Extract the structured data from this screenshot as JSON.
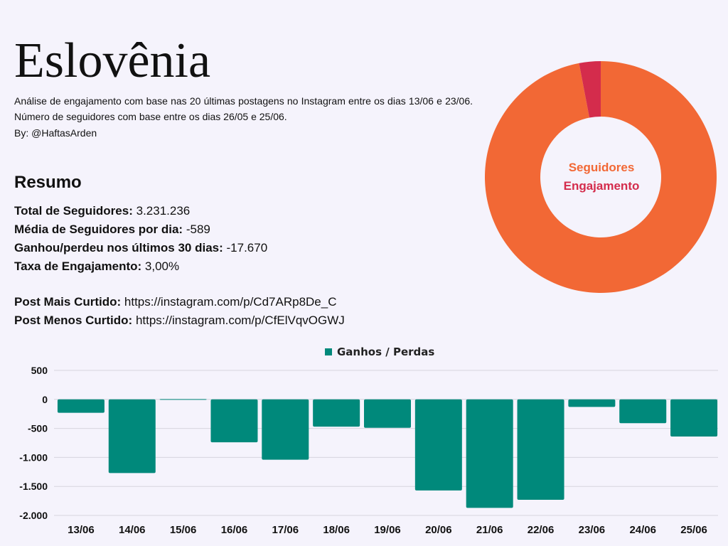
{
  "header": {
    "title": "Eslovênia",
    "subtitle": "Análise de engajamento com base nas 20 últimas postagens no Instagram entre os dias 13/06 e 23/06. Número de seguidores com base entre os dias 26/05 e 25/06.",
    "byline": "By: @HaftasArden"
  },
  "summary": {
    "heading": "Resumo",
    "total_followers_label": "Total de Seguidores:",
    "total_followers_value": "3.231.236",
    "avg_followers_label": "Média de Seguidores por dia:",
    "avg_followers_value": "-589",
    "gain_loss_label": "Ganhou/perdeu nos últimos 30 dias:",
    "gain_loss_value": "-17.670",
    "engagement_rate_label": "Taxa de Engajamento:",
    "engagement_rate_value": "3,00%"
  },
  "posts": {
    "most_liked_label": "Post Mais Curtido:",
    "most_liked_value": "https://instagram.com/p/Cd7ARp8De_C",
    "least_liked_label": "Post Menos Curtido:",
    "least_liked_value": "https://instagram.com/p/CfElVqvOGWJ"
  },
  "colors": {
    "followers": "#f26835",
    "engagement": "#d42c4c",
    "bars": "#00897b"
  },
  "chart_data": [
    {
      "type": "pie",
      "labels": [
        "Seguidores",
        "Engajamento"
      ],
      "values": [
        97,
        3
      ],
      "donut": true
    },
    {
      "type": "bar",
      "categories": [
        "13/06",
        "14/06",
        "15/06",
        "16/06",
        "17/06",
        "18/06",
        "19/06",
        "20/06",
        "21/06",
        "22/06",
        "23/06",
        "24/06",
        "25/06"
      ],
      "series": [
        {
          "name": "Ganhos / Perdas",
          "values": [
            -230,
            -1270,
            5,
            -740,
            -1040,
            -470,
            -490,
            -1570,
            -1870,
            -1730,
            -130,
            -410,
            -640
          ]
        }
      ],
      "ylim": [
        -2000,
        500
      ],
      "yticks": [
        500,
        0,
        -500,
        -1000,
        -1500,
        -2000
      ],
      "ytick_labels": [
        "500",
        "0",
        "-500",
        "-1.000",
        "-1.500",
        "-2.000"
      ],
      "grid": true,
      "legend": "top-center"
    }
  ]
}
